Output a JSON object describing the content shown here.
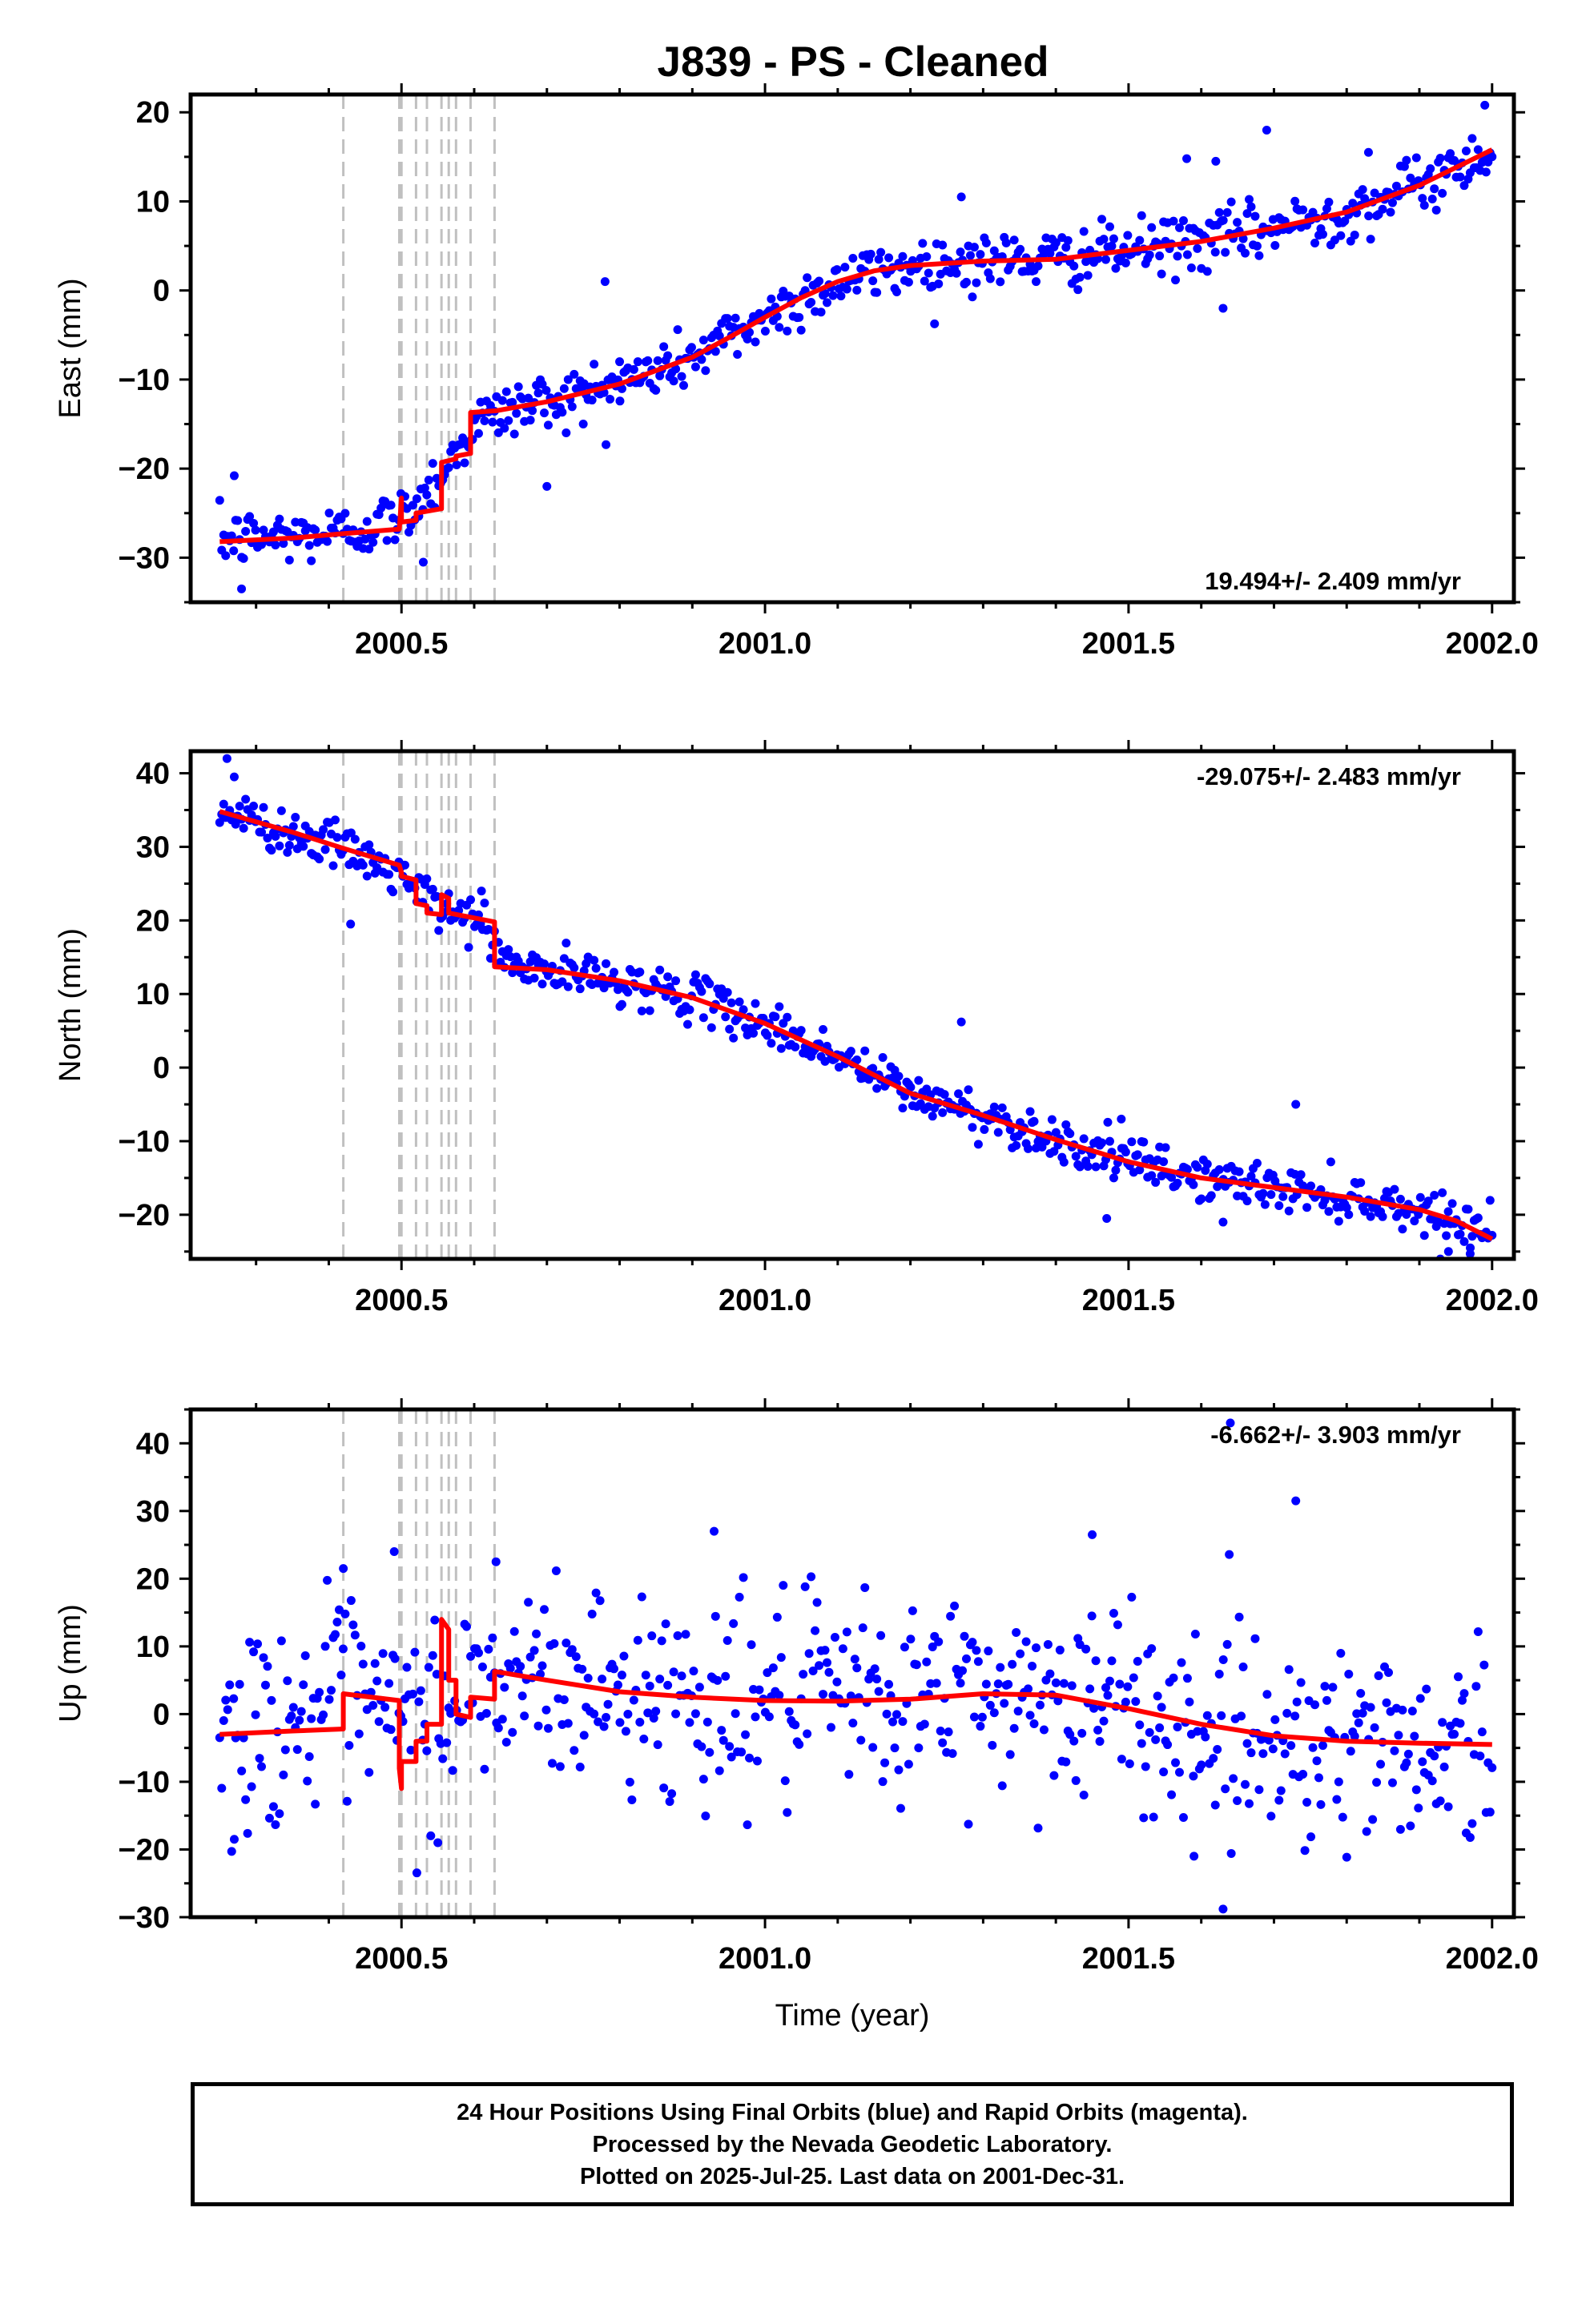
{
  "title": "J839  - PS - Cleaned",
  "colors": {
    "points": "#0000ff",
    "model": "#ff0000",
    "offset_lines": "#c0c0c0",
    "frame": "#000000"
  },
  "chart_data": [
    {
      "type": "scatter",
      "ylabel": "East (mm)",
      "xlim": [
        2000.21,
        2002.03
      ],
      "ylim": [
        -35,
        22
      ],
      "xticks": [
        "2000.5",
        "2001.0",
        "2001.5",
        "2002.0"
      ],
      "yticks": [
        "20",
        "10",
        "0",
        "−10",
        "−20",
        "−30"
      ],
      "rate_label": "19.494+/- 2.409 mm/yr",
      "rate_position": "bottom-right",
      "offset_epochs": [
        2000.42,
        2000.497,
        2000.5,
        2000.52,
        2000.535,
        2000.555,
        2000.565,
        2000.575,
        2000.595,
        2000.628
      ],
      "model": {
        "segments": [
          {
            "x": [
              2000.25,
              2000.35,
              2000.42,
              2000.497
            ],
            "y": [
              -28.2,
              -27.8,
              -27.3,
              -26.8
            ]
          },
          {
            "x": [
              2000.497,
              2000.5
            ],
            "y": [
              -26.8,
              -23.3
            ]
          },
          {
            "x": [
              2000.5,
              2000.52
            ],
            "y": [
              -26.0,
              -25.8
            ]
          },
          {
            "x": [
              2000.52,
              2000.555
            ],
            "y": [
              -25.0,
              -24.5
            ]
          },
          {
            "x": [
              2000.555,
              2000.575
            ],
            "y": [
              -19.3,
              -18.9
            ]
          },
          {
            "x": [
              2000.575,
              2000.595
            ],
            "y": [
              -18.6,
              -18.3
            ]
          },
          {
            "x": [
              2000.595,
              2000.63,
              2000.7,
              2000.8,
              2000.9,
              2000.95,
              2001.0,
              2001.05,
              2001.1,
              2001.15,
              2001.2,
              2001.3,
              2001.4,
              2001.5,
              2001.6,
              2001.7,
              2001.8,
              2001.9,
              2002.0
            ],
            "y": [
              -13.7,
              -13.5,
              -12.5,
              -10.5,
              -7.5,
              -5.3,
              -3.0,
              -0.8,
              1.0,
              2.2,
              2.8,
              3.3,
              3.5,
              4.5,
              5.5,
              7.0,
              8.8,
              11.8,
              15.8
            ]
          }
        ]
      },
      "trend_points": [
        [
          2000.25,
          -28
        ],
        [
          2000.42,
          -27.2
        ],
        [
          2000.5,
          -25.5
        ],
        [
          2000.56,
          -20
        ],
        [
          2000.6,
          -15
        ],
        [
          2000.65,
          -13.3
        ],
        [
          2000.8,
          -10.5
        ],
        [
          2000.9,
          -7.5
        ],
        [
          2001.0,
          -3
        ],
        [
          2001.1,
          1
        ],
        [
          2001.2,
          2.8
        ],
        [
          2001.3,
          3.3
        ],
        [
          2001.4,
          3.5
        ],
        [
          2001.5,
          4.5
        ],
        [
          2001.6,
          5.5
        ],
        [
          2001.7,
          7
        ],
        [
          2001.8,
          8.8
        ],
        [
          2001.9,
          11.8
        ],
        [
          2002.0,
          15.8
        ]
      ],
      "scatter_sd": 1.6,
      "n_points": 640,
      "outliers": [
        [
          2000.27,
          -20.8
        ],
        [
          2000.28,
          -33.5
        ],
        [
          2000.7,
          -22
        ],
        [
          2000.75,
          -15
        ],
        [
          2000.8,
          -8
        ],
        [
          2000.53,
          -30.5
        ],
        [
          2000.78,
          1
        ],
        [
          2001.27,
          10.5
        ],
        [
          2001.62,
          14.5
        ],
        [
          2001.69,
          18
        ],
        [
          2001.63,
          -2
        ],
        [
          2001.83,
          15.5
        ],
        [
          2001.99,
          20.8
        ],
        [
          2001.58,
          14.8
        ]
      ]
    },
    {
      "type": "scatter",
      "ylabel": "North (mm)",
      "xlim": [
        2000.21,
        2002.03
      ],
      "ylim": [
        -26,
        43
      ],
      "xticks": [
        "2000.5",
        "2001.0",
        "2001.5",
        "2002.0"
      ],
      "yticks": [
        "40",
        "30",
        "20",
        "10",
        "0",
        "−10",
        "−20"
      ],
      "rate_label": "-29.075+/- 2.483 mm/yr",
      "rate_position": "top-right",
      "offset_epochs": [
        2000.42,
        2000.497,
        2000.5,
        2000.52,
        2000.535,
        2000.555,
        2000.565,
        2000.575,
        2000.595,
        2000.628
      ],
      "model": {
        "segments": [
          {
            "x": [
              2000.25,
              2000.35,
              2000.42,
              2000.497
            ],
            "y": [
              34.8,
              32.0,
              29.8,
              27.5
            ]
          },
          {
            "x": [
              2000.497,
              2000.5
            ],
            "y": [
              27.5,
              26.5
            ]
          },
          {
            "x": [
              2000.5,
              2000.52
            ],
            "y": [
              26.0,
              25.5
            ]
          },
          {
            "x": [
              2000.52,
              2000.535
            ],
            "y": [
              22.3,
              22.0
            ]
          },
          {
            "x": [
              2000.535,
              2000.555
            ],
            "y": [
              21.0,
              20.8
            ]
          },
          {
            "x": [
              2000.555,
              2000.565
            ],
            "y": [
              23.5,
              23.0
            ]
          },
          {
            "x": [
              2000.565,
              2000.628
            ],
            "y": [
              21.0,
              19.8
            ]
          },
          {
            "x": [
              2000.628,
              2000.7,
              2000.8,
              2000.9,
              2001.0,
              2001.1,
              2001.2,
              2001.3,
              2001.4,
              2001.5,
              2001.6,
              2001.7,
              2001.8,
              2001.9,
              2001.95,
              2002.0
            ],
            "y": [
              13.7,
              13.3,
              11.8,
              9.5,
              6.0,
              1.5,
              -3.5,
              -6.5,
              -9.8,
              -12.8,
              -15.0,
              -16.3,
              -17.6,
              -19.3,
              -20.8,
              -23.3
            ]
          }
        ]
      },
      "trend_points": [
        [
          2000.25,
          34.8
        ],
        [
          2000.42,
          29.8
        ],
        [
          2000.5,
          26
        ],
        [
          2000.55,
          21.5
        ],
        [
          2000.6,
          20.5
        ],
        [
          2000.65,
          13.7
        ],
        [
          2000.8,
          11.8
        ],
        [
          2000.9,
          9.5
        ],
        [
          2001.0,
          6
        ],
        [
          2001.1,
          1.5
        ],
        [
          2001.2,
          -3.5
        ],
        [
          2001.3,
          -6.5
        ],
        [
          2001.4,
          -9.8
        ],
        [
          2001.5,
          -12.8
        ],
        [
          2001.6,
          -15
        ],
        [
          2001.7,
          -16.3
        ],
        [
          2001.8,
          -17.6
        ],
        [
          2001.9,
          -19.3
        ],
        [
          2002.0,
          -22.5
        ]
      ],
      "scatter_sd": 1.5,
      "n_points": 640,
      "outliers": [
        [
          2000.26,
          42
        ],
        [
          2000.27,
          39.5
        ],
        [
          2000.43,
          19.5
        ],
        [
          2000.61,
          24
        ],
        [
          2001.27,
          6.2
        ],
        [
          2001.73,
          -5
        ],
        [
          2001.49,
          -7
        ],
        [
          2001.47,
          -20.5
        ],
        [
          2001.63,
          -21
        ],
        [
          2001.94,
          -25
        ],
        [
          2001.97,
          -24.5
        ]
      ]
    },
    {
      "type": "scatter",
      "ylabel": "Up (mm)",
      "xlabel": "Time (year)",
      "xlim": [
        2000.21,
        2002.03
      ],
      "ylim": [
        -30,
        45
      ],
      "xticks": [
        "2000.5",
        "2001.0",
        "2001.5",
        "2002.0"
      ],
      "yticks": [
        "40",
        "30",
        "20",
        "10",
        "0",
        "−10",
        "−20",
        "−30"
      ],
      "rate_label": "-6.662+/- 3.903 mm/yr",
      "rate_position": "top-right",
      "offset_epochs": [
        2000.42,
        2000.497,
        2000.5,
        2000.52,
        2000.535,
        2000.555,
        2000.565,
        2000.575,
        2000.595,
        2000.628
      ],
      "model": {
        "segments": [
          {
            "x": [
              2000.25,
              2000.35,
              2000.42
            ],
            "y": [
              -3.0,
              -2.5,
              -2.2
            ]
          },
          {
            "x": [
              2000.42,
              2000.497
            ],
            "y": [
              3.0,
              2.0
            ]
          },
          {
            "x": [
              2000.497,
              2000.5
            ],
            "y": [
              -8.0,
              -11.0
            ]
          },
          {
            "x": [
              2000.5,
              2000.52
            ],
            "y": [
              -7.0,
              -7.0
            ]
          },
          {
            "x": [
              2000.52,
              2000.535
            ],
            "y": [
              -4.0,
              -4.0
            ]
          },
          {
            "x": [
              2000.535,
              2000.555
            ],
            "y": [
              -1.5,
              -1.5
            ]
          },
          {
            "x": [
              2000.555,
              2000.565
            ],
            "y": [
              14.0,
              12.5
            ]
          },
          {
            "x": [
              2000.565,
              2000.575
            ],
            "y": [
              5.0,
              5.0
            ]
          },
          {
            "x": [
              2000.575,
              2000.595
            ],
            "y": [
              0.0,
              -0.5
            ]
          },
          {
            "x": [
              2000.595,
              2000.628
            ],
            "y": [
              2.5,
              2.2
            ]
          },
          {
            "x": [
              2000.628,
              2000.7,
              2000.8,
              2000.9,
              2001.0,
              2001.1,
              2001.2,
              2001.3,
              2001.4,
              2001.5,
              2001.6,
              2001.7,
              2001.8,
              2001.9,
              2002.0
            ],
            "y": [
              6.3,
              5.0,
              3.3,
              2.5,
              2.0,
              1.9,
              2.2,
              3.0,
              2.8,
              0.8,
              -1.5,
              -3.2,
              -4.0,
              -4.3,
              -4.5
            ]
          }
        ]
      },
      "trend_points": [
        [
          2000.25,
          -3
        ],
        [
          2000.42,
          2
        ],
        [
          2000.5,
          -2
        ],
        [
          2000.6,
          3
        ],
        [
          2000.7,
          5
        ],
        [
          2000.8,
          3.3
        ],
        [
          2000.9,
          2.5
        ],
        [
          2001.0,
          2
        ],
        [
          2001.1,
          1.9
        ],
        [
          2001.2,
          2.2
        ],
        [
          2001.3,
          3
        ],
        [
          2001.4,
          2.8
        ],
        [
          2001.5,
          0.8
        ],
        [
          2001.6,
          -1.5
        ],
        [
          2001.7,
          -3.2
        ],
        [
          2001.8,
          -4
        ],
        [
          2001.9,
          -4.3
        ],
        [
          2002.0,
          -4.5
        ]
      ],
      "scatter_sd": 7.5,
      "n_points": 640,
      "outliers": [
        [
          2000.42,
          21.5
        ],
        [
          2000.49,
          24
        ],
        [
          2000.63,
          22.5
        ],
        [
          2000.93,
          27
        ],
        [
          2001.45,
          26.5
        ],
        [
          2001.73,
          31.5
        ],
        [
          2001.64,
          43
        ],
        [
          2001.63,
          -28.8
        ],
        [
          2001.59,
          -21
        ],
        [
          2000.55,
          -19
        ],
        [
          2000.27,
          -18.5
        ]
      ]
    }
  ],
  "footer": {
    "lines": [
      "24 Hour Positions Using Final Orbits (blue) and Rapid Orbits (magenta).",
      "Processed by the Nevada Geodetic Laboratory.",
      "Plotted on 2025-Jul-25. Last data on 2001-Dec-31."
    ]
  }
}
